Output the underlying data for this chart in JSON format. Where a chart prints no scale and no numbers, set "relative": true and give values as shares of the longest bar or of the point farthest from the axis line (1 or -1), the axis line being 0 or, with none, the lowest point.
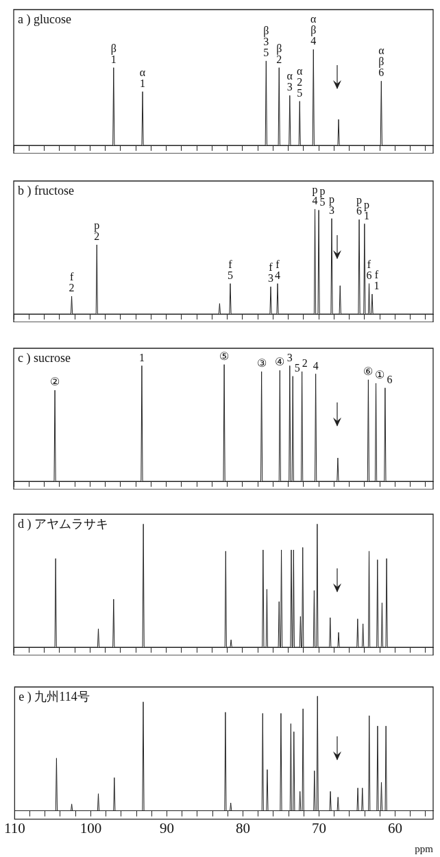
{
  "chart_data": [
    {
      "type": "line",
      "title": "a ) glucose",
      "relative": true,
      "marker": "none",
      "tick_labels": false,
      "xlim": [
        110,
        55
      ],
      "xticks": [
        110,
        {
          "value": 108,
          "label": null
        },
        {
          "value": 106,
          "label": null
        },
        {
          "value": 104,
          "label": null
        },
        {
          "value": 102,
          "label": null
        },
        100,
        {
          "value": 98,
          "label": null
        },
        {
          "value": 96,
          "label": null
        },
        {
          "value": 94,
          "label": null
        },
        {
          "value": 92,
          "label": null
        },
        90,
        {
          "value": 88,
          "label": null
        },
        {
          "value": 86,
          "label": null
        },
        {
          "value": 84,
          "label": null
        },
        {
          "value": 82,
          "label": null
        },
        80,
        {
          "value": 78,
          "label": null
        },
        {
          "value": 76,
          "label": null
        },
        {
          "value": 74,
          "label": null
        },
        {
          "value": 72,
          "label": null
        },
        70,
        {
          "value": 68,
          "label": null
        },
        {
          "value": 66,
          "label": null
        },
        {
          "value": 64,
          "label": null
        },
        {
          "value": 62,
          "label": null
        },
        60,
        {
          "value": 58,
          "label": null
        },
        {
          "value": 56,
          "label": null
        }
      ],
      "series": [
        {
          "color": "#222222",
          "x": [
            110,
            97.0,
            96.9,
            96.8,
            93.2,
            93.1,
            93.0,
            77.0,
            76.9,
            76.8,
            75.3,
            75.2,
            75.1,
            73.9,
            73.8,
            73.7,
            72.6,
            72.5,
            72.4,
            70.8,
            70.7,
            70.6,
            67.5,
            67.4,
            67.3,
            61.9,
            61.8,
            61.7,
            55
          ],
          "values": [
            0,
            0,
            0.81,
            0,
            0,
            0.56,
            0,
            0,
            0.88,
            0,
            0,
            0.81,
            0,
            0,
            0.52,
            0,
            0,
            0.46,
            0,
            0,
            1,
            0,
            0,
            0.27,
            0,
            0,
            0.67,
            0,
            0
          ]
        }
      ],
      "annotations": [
        {
          "text": "β",
          "x": 96.9,
          "y": 0.81
        },
        {
          "text": "1",
          "x": 96.9,
          "y": 0.81
        },
        {
          "text": "α",
          "x": 93.1,
          "y": 0.56
        },
        {
          "text": "1",
          "x": 93.1,
          "y": 0.56
        },
        {
          "text": "β",
          "x": 76.9,
          "y": 0.88
        },
        {
          "text": "3",
          "x": 76.9,
          "y": 0.88
        },
        {
          "text": "5",
          "x": 76.9,
          "y": 0.88
        },
        {
          "text": "β",
          "x": 75.2,
          "y": 0.81
        },
        {
          "text": "2",
          "x": 75.2,
          "y": 0.81
        },
        {
          "text": "α",
          "x": 73.8,
          "y": 0.52
        },
        {
          "text": "3",
          "x": 73.8,
          "y": 0.52
        },
        {
          "text": "α",
          "x": 72.5,
          "y": 0.46
        },
        {
          "text": "2",
          "x": 72.5,
          "y": 0.46
        },
        {
          "text": "5",
          "x": 72.5,
          "y": 0.46
        },
        {
          "text": "α",
          "x": 70.7,
          "y": 1
        },
        {
          "text": "β",
          "x": 70.7,
          "y": 1
        },
        {
          "text": "4",
          "x": 70.7,
          "y": 1
        },
        {
          "text": "α",
          "x": 61.8,
          "y": 0.67
        },
        {
          "text": "β",
          "x": 61.8,
          "y": 0.67
        },
        {
          "text": "6",
          "x": 61.8,
          "y": 0.67
        }
      ]
    },
    {
      "type": "line",
      "title": "b ) fructose",
      "relative": true,
      "marker": "none",
      "tick_labels": false,
      "xlim": [
        110,
        55
      ],
      "xticks": [
        110,
        {
          "value": 108,
          "label": null
        },
        {
          "value": 106,
          "label": null
        },
        {
          "value": 104,
          "label": null
        },
        {
          "value": 102,
          "label": null
        },
        100,
        {
          "value": 98,
          "label": null
        },
        {
          "value": 96,
          "label": null
        },
        {
          "value": 94,
          "label": null
        },
        {
          "value": 92,
          "label": null
        },
        90,
        {
          "value": 88,
          "label": null
        },
        {
          "value": 86,
          "label": null
        },
        {
          "value": 84,
          "label": null
        },
        {
          "value": 82,
          "label": null
        },
        80,
        {
          "value": 78,
          "label": null
        },
        {
          "value": 76,
          "label": null
        },
        {
          "value": 74,
          "label": null
        },
        {
          "value": 72,
          "label": null
        },
        70,
        {
          "value": 68,
          "label": null
        },
        {
          "value": 66,
          "label": null
        },
        {
          "value": 64,
          "label": null
        },
        {
          "value": 62,
          "label": null
        },
        60,
        {
          "value": 58,
          "label": null
        },
        {
          "value": 56,
          "label": null
        }
      ],
      "series": [
        {
          "color": "#222222",
          "x": [
            110,
            102.5,
            102.4,
            102.3,
            99.2,
            99.1,
            99.0,
            83.1,
            83.0,
            82.9,
            81.7,
            81.6,
            81.5,
            76.4,
            76.3,
            76.2,
            75.5,
            75.4,
            75.3,
            70.6,
            70.5,
            70.4,
            70.1,
            70.0,
            69.9,
            68.4,
            68.3,
            68.2,
            67.3,
            67.2,
            67.1,
            64.8,
            64.7,
            64.6,
            64.1,
            64.0,
            63.9,
            63.5,
            63.4,
            63.3,
            63.1,
            63.0,
            62.9,
            55
          ],
          "values": [
            0,
            0,
            0.17,
            0,
            0,
            0.66,
            0,
            0,
            0.1,
            0,
            0,
            0.29,
            0,
            0,
            0.26,
            0,
            0,
            0.29,
            0,
            0,
            1,
            0,
            0,
            0.99,
            0,
            0,
            0.91,
            0,
            0,
            0.27,
            0,
            0,
            0.9,
            0,
            0,
            0.86,
            0,
            0,
            0.29,
            0,
            0,
            0.19,
            0,
            0
          ]
        }
      ],
      "annotations": [
        {
          "text": "f",
          "x": 102.4,
          "y": 0.17
        },
        {
          "text": "2",
          "x": 102.4,
          "y": 0.17
        },
        {
          "text": "p",
          "x": 99.1,
          "y": 0.66
        },
        {
          "text": "2",
          "x": 99.1,
          "y": 0.66
        },
        {
          "text": "f",
          "x": 81.6,
          "y": 0.29
        },
        {
          "text": "5",
          "x": 81.6,
          "y": 0.29
        },
        {
          "text": "f",
          "x": 76.3,
          "y": 0.26
        },
        {
          "text": "3",
          "x": 76.3,
          "y": 0.26
        },
        {
          "text": "f",
          "x": 75.4,
          "y": 0.29
        },
        {
          "text": "4",
          "x": 75.4,
          "y": 0.29
        },
        {
          "text": "p",
          "x": 70.5,
          "y": 1
        },
        {
          "text": "4",
          "x": 70.5,
          "y": 1
        },
        {
          "text": "p",
          "x": 70.0,
          "y": 0.99
        },
        {
          "text": "5",
          "x": 70.0,
          "y": 0.99
        },
        {
          "text": "p",
          "x": 68.3,
          "y": 0.91
        },
        {
          "text": "3",
          "x": 68.3,
          "y": 0.91
        },
        {
          "text": "p",
          "x": 64.7,
          "y": 0.9
        },
        {
          "text": "6",
          "x": 64.7,
          "y": 0.9
        },
        {
          "text": "p",
          "x": 64.0,
          "y": 0.86
        },
        {
          "text": "1",
          "x": 64.0,
          "y": 0.86
        },
        {
          "text": "f",
          "x": 63.4,
          "y": 0.29
        },
        {
          "text": "6",
          "x": 63.4,
          "y": 0.29
        },
        {
          "text": "f",
          "x": 63.0,
          "y": 0.19
        },
        {
          "text": "1",
          "x": 63.0,
          "y": 0.19
        }
      ]
    },
    {
      "type": "line",
      "title": "c ) sucrose",
      "relative": true,
      "marker": "none",
      "tick_labels": false,
      "xlim": [
        110,
        55
      ],
      "xticks": [
        110,
        {
          "value": 108,
          "label": null
        },
        {
          "value": 106,
          "label": null
        },
        {
          "value": 104,
          "label": null
        },
        {
          "value": 102,
          "label": null
        },
        100,
        {
          "value": 98,
          "label": null
        },
        {
          "value": 96,
          "label": null
        },
        {
          "value": 94,
          "label": null
        },
        {
          "value": 92,
          "label": null
        },
        90,
        {
          "value": 88,
          "label": null
        },
        {
          "value": 86,
          "label": null
        },
        {
          "value": 84,
          "label": null
        },
        {
          "value": 82,
          "label": null
        },
        80,
        {
          "value": 78,
          "label": null
        },
        {
          "value": 76,
          "label": null
        },
        {
          "value": 74,
          "label": null
        },
        {
          "value": 72,
          "label": null
        },
        70,
        {
          "value": 68,
          "label": null
        },
        {
          "value": 66,
          "label": null
        },
        {
          "value": 64,
          "label": null
        },
        {
          "value": 62,
          "label": null
        },
        60,
        {
          "value": 58,
          "label": null
        },
        {
          "value": 56,
          "label": null
        }
      ],
      "series": [
        {
          "color": "#222222",
          "x": [
            110,
            104.7,
            104.6,
            104.5,
            93.3,
            93.2,
            93.1,
            82.5,
            82.4,
            82.3,
            77.6,
            77.5,
            77.4,
            75.2,
            75.1,
            75.0,
            73.9,
            73.8,
            73.7,
            73.5,
            73.4,
            73.3,
            72.3,
            72.2,
            72.1,
            70.5,
            70.4,
            70.3,
            67.6,
            67.5,
            67.4,
            63.6,
            63.5,
            63.4,
            62.6,
            62.5,
            62.4,
            61.4,
            61.3,
            61.2,
            55
          ],
          "values": [
            0,
            0,
            0.78,
            0,
            0,
            0.99,
            0,
            0,
            1,
            0,
            0,
            0.94,
            0,
            0,
            0.95,
            0,
            0,
            0.99,
            0,
            0,
            0.9,
            0,
            0,
            0.94,
            0,
            0,
            0.92,
            0,
            0,
            0.2,
            0,
            0,
            0.87,
            0,
            0,
            0.84,
            0,
            0,
            0.8,
            0,
            0
          ]
        }
      ],
      "annotations": [
        {
          "text": "②",
          "x": 104.6,
          "y": 0.78
        },
        {
          "text": "1",
          "x": 93.2,
          "y": 0.99
        },
        {
          "text": "⑤",
          "x": 82.4,
          "y": 1
        },
        {
          "text": "③",
          "x": 77.5,
          "y": 0.94
        },
        {
          "text": "④",
          "x": 75.1,
          "y": 0.95
        },
        {
          "text": "3",
          "x": 73.8,
          "y": 0.99
        },
        {
          "text": "5",
          "x": 73.4,
          "y": 0.9
        },
        {
          "text": "2",
          "x": 72.2,
          "y": 0.94
        },
        {
          "text": "4",
          "x": 70.4,
          "y": 0.92
        },
        {
          "text": "⑥",
          "x": 63.5,
          "y": 0.87
        },
        {
          "text": "①",
          "x": 62.5,
          "y": 0.84
        },
        {
          "text": "6",
          "x": 61.3,
          "y": 0.8
        }
      ]
    },
    {
      "type": "line",
      "title": "d ) アヤムラサキ",
      "relative": true,
      "marker": "none",
      "tick_labels": false,
      "xlim": [
        110,
        55
      ],
      "xticks": [
        110,
        {
          "value": 108,
          "label": null
        },
        {
          "value": 106,
          "label": null
        },
        {
          "value": 104,
          "label": null
        },
        {
          "value": 102,
          "label": null
        },
        100,
        {
          "value": 98,
          "label": null
        },
        {
          "value": 96,
          "label": null
        },
        {
          "value": 94,
          "label": null
        },
        {
          "value": 92,
          "label": null
        },
        90,
        {
          "value": 88,
          "label": null
        },
        {
          "value": 86,
          "label": null
        },
        {
          "value": 84,
          "label": null
        },
        {
          "value": 82,
          "label": null
        },
        80,
        {
          "value": 78,
          "label": null
        },
        {
          "value": 76,
          "label": null
        },
        {
          "value": 74,
          "label": null
        },
        {
          "value": 72,
          "label": null
        },
        70,
        {
          "value": 68,
          "label": null
        },
        {
          "value": 66,
          "label": null
        },
        {
          "value": 64,
          "label": null
        },
        {
          "value": 62,
          "label": null
        },
        60,
        {
          "value": 58,
          "label": null
        },
        {
          "value": 56,
          "label": null
        }
      ],
      "series": [
        {
          "color": "#222222",
          "x": [
            110,
            104.6,
            104.5,
            104.4,
            99.0,
            98.9,
            98.8,
            97.0,
            96.9,
            96.8,
            93.1,
            93.0,
            92.9,
            82.3,
            82.2,
            82.1,
            81.6,
            81.5,
            81.4,
            77.4,
            77.3,
            77.2,
            76.9,
            76.8,
            76.7,
            75.3,
            75.2,
            75.1,
            75.0,
            74.9,
            74.8,
            73.7,
            73.6,
            73.5,
            73.4,
            73.3,
            73.2,
            72.5,
            72.4,
            72.3,
            72.2,
            72.1,
            72.0,
            70.7,
            70.6,
            70.5,
            70.3,
            70.2,
            70.1,
            68.6,
            68.5,
            68.4,
            67.5,
            67.4,
            67.3,
            65.0,
            64.9,
            64.8,
            64.3,
            64.2,
            64.1,
            63.5,
            63.4,
            63.3,
            62.4,
            62.3,
            62.2,
            61.8,
            61.7,
            61.6,
            61.2,
            61.1,
            61.0,
            55
          ],
          "values": [
            0,
            0,
            0.72,
            0,
            0,
            0.15,
            0,
            0,
            0.39,
            0,
            0,
            1,
            0,
            0,
            0.78,
            0,
            0,
            0.06,
            0,
            0,
            0.79,
            0,
            0,
            0.47,
            0,
            0,
            0.37,
            0,
            0,
            0.79,
            0,
            0,
            0.79,
            0,
            0,
            0.79,
            0,
            0,
            0.25,
            0,
            0,
            0.81,
            0,
            0,
            0.46,
            0,
            0,
            1,
            0,
            0,
            0.24,
            0,
            0,
            0.12,
            0,
            0,
            0.23,
            0,
            0,
            0.19,
            0,
            0,
            0.78,
            0,
            0,
            0.71,
            0,
            0,
            0.36,
            0,
            0,
            0.72,
            0,
            0
          ]
        }
      ]
    },
    {
      "type": "line",
      "title": "e ) 九州114号",
      "relative": true,
      "marker": "none",
      "tick_labels": "x",
      "xlabel": "ppm",
      "xlim": [
        110,
        55
      ],
      "xticks": [
        110,
        {
          "value": 108,
          "label": null
        },
        {
          "value": 106,
          "label": null
        },
        {
          "value": 104,
          "label": null
        },
        {
          "value": 102,
          "label": null
        },
        100,
        {
          "value": 98,
          "label": null
        },
        {
          "value": 96,
          "label": null
        },
        {
          "value": 94,
          "label": null
        },
        {
          "value": 92,
          "label": null
        },
        90,
        {
          "value": 88,
          "label": null
        },
        {
          "value": 86,
          "label": null
        },
        {
          "value": 84,
          "label": null
        },
        {
          "value": 82,
          "label": null
        },
        80,
        {
          "value": 78,
          "label": null
        },
        {
          "value": 76,
          "label": null
        },
        {
          "value": 74,
          "label": null
        },
        {
          "value": 72,
          "label": null
        },
        70,
        {
          "value": 68,
          "label": null
        },
        {
          "value": 66,
          "label": null
        },
        {
          "value": 64,
          "label": null
        },
        {
          "value": 62,
          "label": null
        },
        60,
        {
          "value": 58,
          "label": null
        },
        {
          "value": 56,
          "label": null
        }
      ],
      "series": [
        {
          "color": "#222222",
          "x": [
            110,
            104.6,
            104.5,
            104.4,
            102.6,
            102.5,
            102.4,
            99.1,
            99.0,
            98.9,
            97.0,
            96.9,
            96.8,
            93.2,
            93.1,
            93.0,
            82.4,
            82.3,
            82.2,
            81.7,
            81.6,
            81.5,
            77.5,
            77.4,
            77.3,
            76.9,
            76.8,
            76.7,
            75.1,
            75.0,
            74.9,
            73.8,
            73.7,
            73.6,
            73.4,
            73.3,
            73.2,
            72.6,
            72.5,
            72.4,
            72.2,
            72.1,
            72.0,
            70.7,
            70.6,
            70.5,
            70.3,
            70.2,
            70.1,
            68.6,
            68.5,
            68.4,
            67.6,
            67.5,
            67.4,
            65.0,
            64.9,
            64.8,
            64.4,
            64.3,
            64.2,
            63.5,
            63.4,
            63.3,
            62.4,
            62.3,
            62.2,
            61.9,
            61.8,
            61.7,
            61.3,
            61.2,
            61.1,
            55
          ],
          "values": [
            0,
            0,
            0.46,
            0,
            0,
            0.06,
            0,
            0,
            0.15,
            0,
            0,
            0.29,
            0,
            0,
            0.95,
            0,
            0,
            0.86,
            0,
            0,
            0.07,
            0,
            0,
            0.85,
            0,
            0,
            0.36,
            0,
            0,
            0.85,
            0,
            0,
            0.76,
            0,
            0,
            0.69,
            0,
            0,
            0.17,
            0,
            0,
            0.89,
            0,
            0,
            0.35,
            0,
            0,
            1,
            0,
            0,
            0.17,
            0,
            0,
            0.12,
            0,
            0,
            0.2,
            0,
            0,
            0.2,
            0,
            0,
            0.83,
            0,
            0,
            0.74,
            0,
            0,
            0.25,
            0,
            0,
            0.74,
            0,
            0
          ]
        }
      ]
    }
  ]
}
